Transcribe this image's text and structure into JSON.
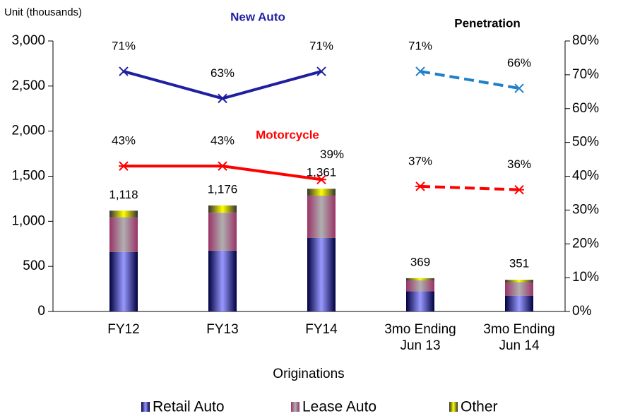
{
  "chart_data": {
    "type": "bar",
    "stacked": true,
    "unit_label": "Unit (thousands)",
    "xlabel": "Originations",
    "y2label": "Penetration",
    "categories": [
      "FY12",
      "FY13",
      "FY14",
      "3mo Ending\nJun 13",
      "3mo Ending\nJun 14"
    ],
    "ylim": [
      0,
      3000
    ],
    "yticks": [
      0,
      500,
      {
        "value": 1000,
        "label": "1,000"
      },
      {
        "value": 1500,
        "label": "1,500"
      },
      {
        "value": 2000,
        "label": "2,000"
      },
      {
        "value": 2500,
        "label": "2,500"
      },
      {
        "value": 3000,
        "label": "3,000"
      }
    ],
    "y2lim": [
      0,
      80
    ],
    "y2ticks": [
      {
        "value": 0,
        "label": "0%"
      },
      {
        "value": 10,
        "label": "10%"
      },
      {
        "value": 20,
        "label": "20%"
      },
      {
        "value": 30,
        "label": "30%"
      },
      {
        "value": 40,
        "label": "40%"
      },
      {
        "value": 50,
        "label": "50%"
      },
      {
        "value": 60,
        "label": "60%"
      },
      {
        "value": 70,
        "label": "70%"
      },
      {
        "value": 80,
        "label": "80%"
      }
    ],
    "series": [
      {
        "name": "Retail Auto",
        "color": "#9999ff",
        "values": [
          660,
          675,
          815,
          225,
          175
        ]
      },
      {
        "name": "Lease Auto",
        "color": "#b0b0b0",
        "edge": "#993366",
        "values": [
          385,
          420,
          470,
          120,
          150
        ]
      },
      {
        "name": "Other",
        "color": "#ffff00",
        "edge": "#333333",
        "values": [
          73,
          81,
          76,
          24,
          26
        ]
      }
    ],
    "totals": {
      "values": [
        1118,
        1176,
        1361,
        369,
        351
      ],
      "value_labels": [
        "1,118",
        "1,176",
        "1,361",
        "369",
        "351"
      ]
    },
    "lines": [
      {
        "name": "New Auto",
        "axis": "y2",
        "type": "line",
        "marker": "x",
        "color": "#1f1fa0",
        "colors": [
          "#1f1fa0",
          "#1f1fa0",
          "#1f1fa0",
          "#1f7fc8",
          "#1f7fc8"
        ],
        "line_styles": [
          "solid",
          "solid",
          "solid",
          "dashed",
          "dashed"
        ],
        "values": [
          71,
          63,
          71,
          71,
          66
        ],
        "value_labels": [
          "71%",
          "63%",
          "71%",
          "71%",
          "66%"
        ]
      },
      {
        "name": "Motorcycle",
        "axis": "y2",
        "type": "line",
        "marker": "asterisk",
        "color": "#ff0000",
        "colors": [
          "#ff0000",
          "#ff0000",
          "#ff0000",
          "#ff0000",
          "#ff0000"
        ],
        "line_styles": [
          "solid",
          "solid",
          "solid",
          "dashed",
          "dashed"
        ],
        "values": [
          43,
          43,
          39,
          37,
          36
        ],
        "value_labels": [
          "43%",
          "43%",
          "39%",
          "37%",
          "36%"
        ]
      }
    ],
    "legend": "bottom"
  }
}
